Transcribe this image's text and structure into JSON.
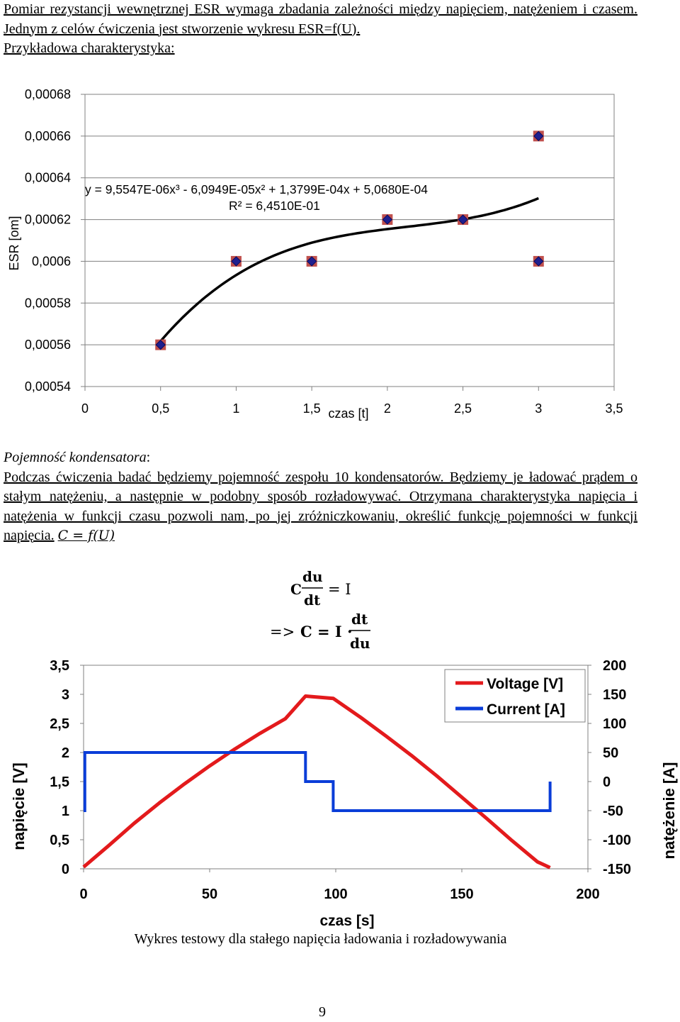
{
  "intro": {
    "text": "Pomiar rezystancji wewnętrznej ESR wymaga zbadania zależności między napięciem, natężeniem i czasem. Jednym z celów ćwiczenia jest stworzenie wykresu ESR=f(U).",
    "example_label": "Przykładowa charakterystyka"
  },
  "chart_data": [
    {
      "type": "scatter",
      "title": "",
      "xlabel": "czas [t]",
      "ylabel": "ESR [om]",
      "xlim": [
        0,
        3.5
      ],
      "ylim": [
        0.00054,
        0.00068
      ],
      "x_ticks": [
        "0",
        "0,5",
        "1",
        "1,5",
        "2",
        "2,5",
        "3",
        "3,5"
      ],
      "y_ticks": [
        "0,00068",
        "0,00066",
        "0,00064",
        "0,00062",
        "0,0006",
        "0,00058",
        "0,00056",
        "0,00054"
      ],
      "x_tick_values": [
        0,
        0.5,
        1,
        1.5,
        2,
        2.5,
        3,
        3.5
      ],
      "y_tick_values": [
        0.00068,
        0.00066,
        0.00064,
        0.00062,
        0.0006,
        0.00058,
        0.00056,
        0.00054
      ],
      "points": [
        {
          "x": 0.5,
          "y": 0.00056
        },
        {
          "x": 1.0,
          "y": 0.0006
        },
        {
          "x": 1.5,
          "y": 0.0006
        },
        {
          "x": 2.0,
          "y": 0.00062
        },
        {
          "x": 2.5,
          "y": 0.00062
        },
        {
          "x": 3.0,
          "y": 0.00066
        },
        {
          "x": 3.0,
          "y": 0.0006
        }
      ],
      "trendline": {
        "type": "polynomial-3",
        "coefficients": [
          9.5547e-06,
          -6.0949e-05,
          0.00013799,
          0.0005068
        ],
        "x_range": [
          0.5,
          3.0
        ]
      },
      "annotations": {
        "equation": "y = 9,5547E-06x³ - 6,0949E-05x² + 1,3799E-04x + 5,0680E-04",
        "r_squared": "R² = 6,4510E-01"
      },
      "grid": true,
      "legend": "none"
    },
    {
      "type": "line",
      "title": "",
      "xlabel": "czas [s]",
      "ylabel": "napięcie [V]",
      "y2label": "natężenie [A]",
      "xlim": [
        0,
        200
      ],
      "ylim": [
        0,
        3.5
      ],
      "y2lim": [
        -150,
        200
      ],
      "x_ticks": [
        "0",
        "50",
        "100",
        "150",
        "200"
      ],
      "y_ticks": [
        "3,5",
        "3",
        "2,5",
        "2",
        "1,5",
        "1",
        "0,5",
        "0"
      ],
      "y2_ticks": [
        "200",
        "150",
        "100",
        "50",
        "0",
        "-50",
        "-100",
        "-150"
      ],
      "x_tick_values": [
        0,
        50,
        100,
        150,
        200
      ],
      "y_tick_values": [
        3.5,
        3,
        2.5,
        2,
        1.5,
        1,
        0.5,
        0
      ],
      "y2_tick_values": [
        200,
        150,
        100,
        50,
        0,
        -50,
        -100,
        -150
      ],
      "series": [
        {
          "name": "Voltage [V]",
          "axis": "left",
          "color": "#e31a1c",
          "x": [
            0,
            10,
            20,
            30,
            40,
            50,
            60,
            70,
            80,
            88,
            99,
            110,
            120,
            130,
            140,
            150,
            160,
            170,
            180,
            185
          ],
          "values": [
            0.03,
            0.4,
            0.78,
            1.13,
            1.46,
            1.77,
            2.06,
            2.33,
            2.58,
            2.97,
            2.93,
            2.6,
            2.28,
            1.95,
            1.6,
            1.23,
            0.86,
            0.48,
            0.12,
            0.02
          ]
        },
        {
          "name": "Current [A]",
          "axis": "right",
          "color": "#0a3dd8",
          "x": [
            0,
            0.5,
            0.5,
            88,
            88,
            99,
            99,
            185,
            185
          ],
          "values": [
            -50,
            -50,
            50,
            50,
            0,
            0,
            -50,
            -50,
            0
          ]
        }
      ],
      "legend": "top-right",
      "grid": false
    }
  ],
  "capacitance": {
    "heading": "Pojemność kondensatora",
    "body": "Podczas ćwiczenia badać będziemy pojemność zespołu 10 kondensatorów. Będziemy je ładować prądem o stałym natężeniu, a następnie w podobny sposób rozładowywać. Otrzymana charakterystyka napięcia i natężenia w funkcji czasu pozwoli nam, po jej zróżniczkowaniu, określić funkcję pojemności w funkcji napięcia.",
    "formula": "C = f(U)"
  },
  "equations": {
    "eq1_c": "C",
    "eq1_num": "du",
    "eq1_den": "dt",
    "eq1_rhs": "= I",
    "eq2_arrow": "=>",
    "eq2_lhs": "C = I ·",
    "eq2_num": "dt",
    "eq2_den": "du"
  },
  "caption2": "Wykres testowy dla stałego napięcia ładowania i rozładowywania",
  "page_number": "9"
}
